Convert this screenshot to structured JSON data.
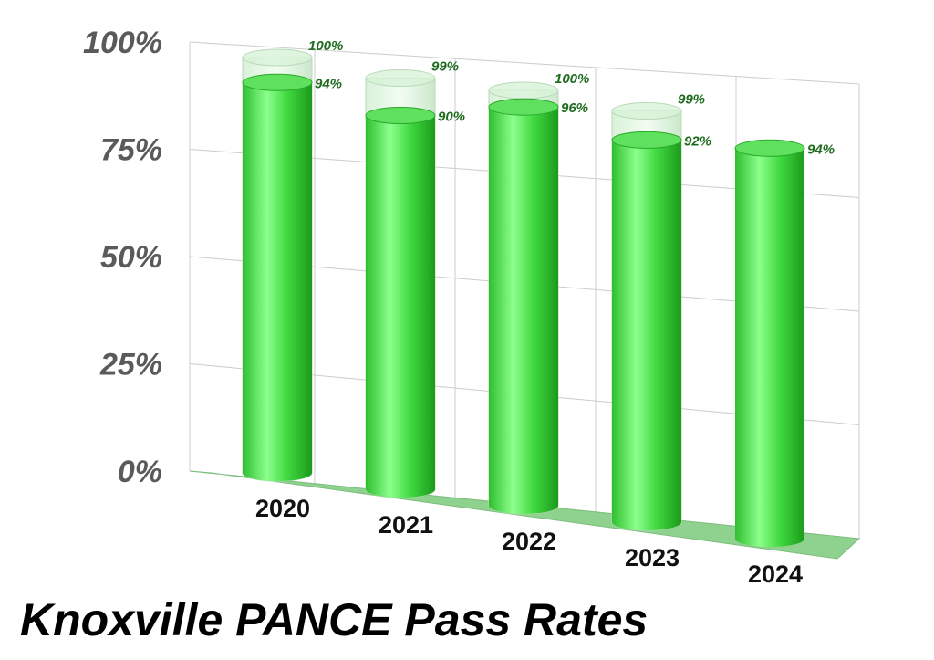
{
  "chart_data": {
    "type": "bar",
    "style": "3d-cylinder",
    "title": "Knoxville PANCE Pass Rates",
    "categories": [
      "2020",
      "2021",
      "2022",
      "2023",
      "2024"
    ],
    "series": [
      {
        "values": [
          100,
          99,
          100,
          99,
          null
        ]
      },
      {
        "values": [
          94,
          90,
          96,
          92,
          94
        ]
      }
    ],
    "data_labels": [
      [
        "100%",
        "94%"
      ],
      [
        "99%",
        "90%"
      ],
      [
        "100%",
        "96%"
      ],
      [
        "99%",
        "92%"
      ],
      [
        "94%"
      ]
    ],
    "ylim": [
      0,
      100
    ],
    "y_ticks": [
      "0%",
      "25%",
      "50%",
      "75%",
      "100%"
    ],
    "grid": true,
    "legend": "none",
    "colors": {
      "bar": "#3fd83f",
      "bar_dark": "#1c9a1c",
      "floor": "#8fd18f",
      "label": "#1e6b1e",
      "grid": "#cccccc"
    }
  }
}
